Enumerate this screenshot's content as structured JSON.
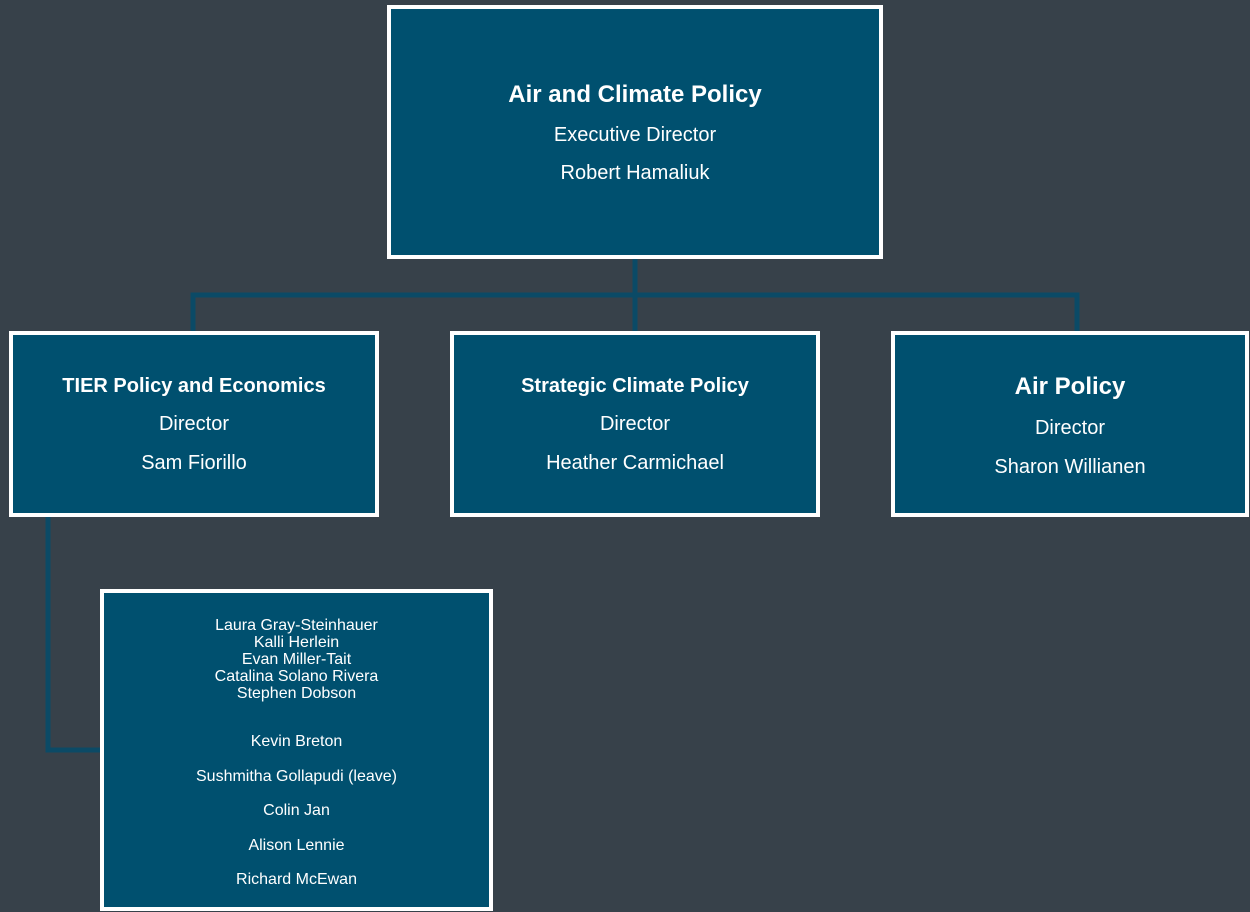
{
  "nodes": [
    {
      "title": "Air and Climate Policy",
      "role": "Executive Director",
      "name": "Robert Hamaliuk"
    },
    {
      "title": "TIER Policy and Economics",
      "role": "Director",
      "name": "Sam Fiorillo"
    },
    {
      "title": "Strategic Climate Policy",
      "role": "Director",
      "name": "Heather Carmichael"
    },
    {
      "title": "Air Policy",
      "role": "Director",
      "name": "Sharon Willianen"
    }
  ],
  "staff": {
    "group1": [
      "Laura Gray-Steinhauer",
      "Kalli Herlein",
      "Evan Miller-Tait",
      "Catalina Solano Rivera",
      "Stephen Dobson"
    ],
    "group2": [
      "Kevin Breton",
      "Sushmitha Gollapudi (leave)",
      "Colin Jan",
      "Alison Lennie",
      "Richard McEwan"
    ]
  }
}
